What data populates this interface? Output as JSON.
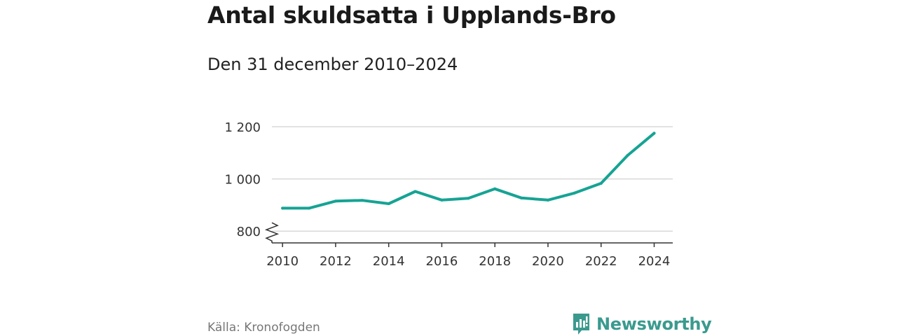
{
  "header": {
    "title": "Antal skuldsatta i Upplands-Bro",
    "subtitle": "Den 31 december 2010–2024"
  },
  "footer": {
    "source": "Källa: Kronofogden",
    "brand": "Newsworthy"
  },
  "colors": {
    "line": "#16a394",
    "grid": "#d9d9d9",
    "axis": "#333333",
    "brand": "#3a9a8e"
  },
  "chart_data": {
    "type": "line",
    "title": "Antal skuldsatta i Upplands-Bro",
    "subtitle": "Den 31 december 2010–2024",
    "xlabel": "",
    "ylabel": "",
    "x": [
      2010,
      2011,
      2012,
      2013,
      2014,
      2015,
      2016,
      2017,
      2018,
      2019,
      2020,
      2021,
      2022,
      2023,
      2024
    ],
    "series": [
      {
        "name": "Antal skuldsatta",
        "values": [
          888,
          888,
          915,
          918,
          905,
          952,
          919,
          926,
          962,
          927,
          919,
          946,
          983,
          1090,
          1175
        ]
      }
    ],
    "xticks": [
      2010,
      2012,
      2014,
      2016,
      2018,
      2020,
      2022,
      2024
    ],
    "xtick_labels": [
      "2010",
      "2012",
      "2014",
      "2016",
      "2018",
      "2020",
      "2022",
      "2024"
    ],
    "yticks": [
      800,
      1000,
      1200
    ],
    "ytick_labels": [
      "800",
      "1 000",
      "1 200"
    ],
    "ylim": [
      755,
      1200
    ],
    "xlim": [
      2009.6,
      2024.7
    ],
    "axis_break": true,
    "grid": true
  }
}
